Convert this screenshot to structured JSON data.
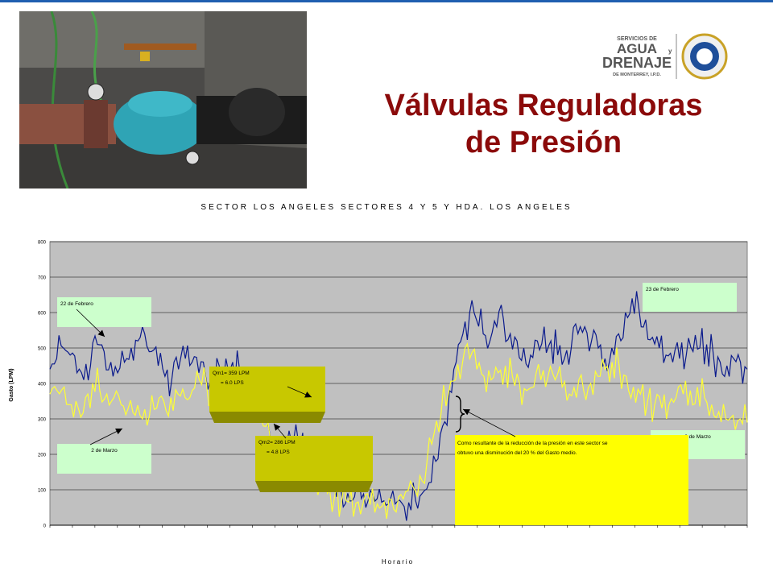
{
  "header": {
    "title_line1": "Válvulas Reguladoras",
    "title_line2": "de Presión",
    "logo_line1": "SERVICIOS DE",
    "logo_line2": "AGUA",
    "logo_line2b": "y",
    "logo_line3": "DRENAJE",
    "logo_line4": "DE MONTERREY, I.P.D."
  },
  "photo": {
    "subject": "pressure-regulating-valve-photo"
  },
  "chart_data": {
    "type": "line",
    "title": "SECTOR LOS ANGELES SECTORES 4 Y 5 Y HDA. LOS ANGELES",
    "xlabel": "Horario",
    "ylabel": "Gasto (LPM)",
    "ylim": [
      0,
      800
    ],
    "yticks": [
      0,
      100,
      200,
      300,
      400,
      500,
      600,
      700,
      800
    ],
    "grid": true,
    "series": [
      {
        "name": "23 de Febrero",
        "color": "#0a1a8c",
        "values": [
          440,
          470,
          500,
          480,
          430,
          410,
          450,
          510,
          490,
          460,
          430,
          460,
          500,
          520,
          540,
          490,
          450,
          420,
          410,
          440,
          470,
          460,
          430,
          420,
          410,
          450,
          470,
          460,
          440,
          430,
          400,
          380,
          300,
          220,
          200,
          230,
          240,
          220,
          200,
          180,
          160,
          140,
          120,
          100,
          90,
          80,
          75,
          70,
          68,
          65,
          60,
          60,
          62,
          64,
          70,
          90,
          120,
          180,
          280,
          380,
          460,
          540,
          600,
          580,
          540,
          520,
          560,
          580,
          540,
          520,
          500,
          480,
          520,
          560,
          520,
          480,
          470,
          500,
          540,
          560,
          520,
          500,
          470,
          500,
          540,
          600,
          640,
          610,
          580,
          530,
          500,
          480,
          460,
          470,
          480,
          490,
          500,
          510,
          480,
          460,
          450,
          470,
          460,
          440
        ]
      },
      {
        "name": "2 de Marzo",
        "color": "#ffff33",
        "values": [
          370,
          380,
          390,
          340,
          330,
          360,
          400,
          380,
          370,
          360,
          340,
          330,
          310,
          300,
          310,
          330,
          350,
          360,
          370,
          360,
          380,
          410,
          400,
          380,
          360,
          350,
          340,
          330,
          330,
          310,
          280,
          240,
          200,
          180,
          170,
          160,
          150,
          130,
          110,
          90,
          80,
          70,
          65,
          62,
          60,
          58,
          60,
          65,
          72,
          80,
          95,
          110,
          140,
          180,
          260,
          320,
          370,
          410,
          460,
          470,
          440,
          420,
          410,
          430,
          450,
          420,
          400,
          380,
          390,
          410,
          420,
          410,
          390,
          370,
          360,
          380,
          400,
          420,
          440,
          460,
          450,
          420,
          390,
          370,
          350,
          340,
          330,
          340,
          360,
          370,
          380,
          390,
          360,
          340,
          320,
          300,
          310,
          300,
          290
        ]
      }
    ],
    "annotations": {
      "feb22": "22 de Febrero",
      "mar2": "2 de Marzo",
      "feb23": "23 de Febrero",
      "mar3": "3 de Marzo",
      "qm1_line1": "Qm1= 359 LPM",
      "qm1_line2": "= 6.0 LPS",
      "qm2_line1": "Qm2= 286 LPM",
      "qm2_line2": "= 4.8 LPS",
      "note_line1": "Como resultante de la reducción de la presión en este sector se",
      "note_line2": "obtuvo una disminución del 20 % del Gasto medio."
    },
    "mean_lines": {
      "qm1": 359,
      "qm2": 286
    }
  },
  "colors": {
    "title": "#8b0a0a",
    "plot_bg": "#c0c0c0",
    "label_box": "#ccffcc",
    "qm_box": "#c8c800",
    "note_box": "#ffff00",
    "accent": "#1f5fb0"
  }
}
